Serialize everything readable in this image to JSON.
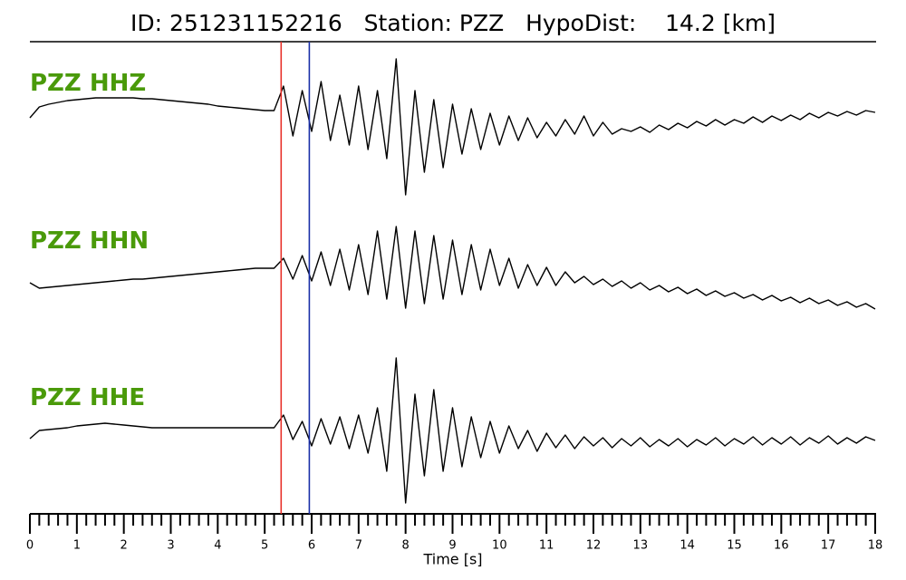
{
  "chart_data": {
    "type": "waveform",
    "title": "ID: 251231152216   Station: PZZ   HypoDist:    14.2 [km]",
    "x_label": "Time [s]",
    "xlim": [
      0,
      18
    ],
    "xticks": [
      0,
      1,
      2,
      3,
      4,
      5,
      6,
      7,
      8,
      9,
      10,
      11,
      12,
      13,
      14,
      15,
      16,
      17,
      18
    ],
    "xticks_minor": [
      0.2,
      0.4,
      0.6,
      0.8,
      1.2,
      1.4,
      1.6,
      1.8,
      2.2,
      2.4,
      2.6,
      2.8,
      3.2,
      3.4,
      3.6,
      3.8,
      4.2,
      4.4,
      4.6,
      4.8,
      5.2,
      5.4,
      5.6,
      5.8,
      6.2,
      6.4,
      6.6,
      6.8,
      7.2,
      7.4,
      7.6,
      7.8,
      8.2,
      8.4,
      8.6,
      8.8,
      9.2,
      9.4,
      9.6,
      9.8,
      10.2,
      10.4,
      10.6,
      10.8,
      11.2,
      11.4,
      11.6,
      11.8,
      12.2,
      12.4,
      12.6,
      12.8,
      13.2,
      13.4,
      13.6,
      13.8,
      14.2,
      14.4,
      14.6,
      14.8,
      15.2,
      15.4,
      15.6,
      15.8,
      16.2,
      16.4,
      16.6,
      16.8,
      17.2,
      17.4,
      17.6,
      17.8
    ],
    "x": [
      0,
      0.2,
      0.4,
      0.6,
      0.8,
      1,
      1.2,
      1.4,
      1.6,
      1.8,
      2,
      2.2,
      2.4,
      2.6,
      2.8,
      3,
      3.2,
      3.4,
      3.6,
      3.8,
      4,
      4.2,
      4.4,
      4.6,
      4.8,
      5,
      5.2,
      5.4,
      5.6,
      5.8,
      6,
      6.2,
      6.4,
      6.6,
      6.8,
      7,
      7.2,
      7.4,
      7.6,
      7.8,
      8,
      8.2,
      8.4,
      8.6,
      8.8,
      9,
      9.2,
      9.4,
      9.6,
      9.8,
      10,
      10.2,
      10.4,
      10.6,
      10.8,
      11,
      11.2,
      11.4,
      11.6,
      11.8,
      12,
      12.2,
      12.4,
      12.6,
      12.8,
      13,
      13.2,
      13.4,
      13.6,
      13.8,
      14,
      14.2,
      14.4,
      14.6,
      14.8,
      15,
      15.2,
      15.4,
      15.6,
      15.8,
      16,
      16.2,
      16.4,
      16.6,
      16.8,
      17,
      17.2,
      17.4,
      17.6,
      17.8,
      18
    ],
    "traces": [
      {
        "name": "PZZ HHZ",
        "color": "#000000",
        "values": [
          10,
          22,
          25,
          27,
          29,
          30,
          31,
          32,
          32,
          32,
          32,
          32,
          31,
          31,
          30,
          29,
          28,
          27,
          26,
          25,
          23,
          22,
          21,
          20,
          19,
          18,
          18,
          45,
          -10,
          40,
          -5,
          50,
          -15,
          35,
          -20,
          45,
          -25,
          40,
          -35,
          75,
          -75,
          40,
          -50,
          30,
          -45,
          25,
          -30,
          20,
          -25,
          15,
          -20,
          12,
          -15,
          10,
          -12,
          5,
          -10,
          8,
          -8,
          12,
          -10,
          5,
          -8,
          -2,
          -5,
          0,
          -6,
          2,
          -3,
          4,
          -1,
          6,
          1,
          8,
          2,
          8,
          4,
          11,
          5,
          12,
          7,
          13,
          8,
          15,
          10,
          16,
          12,
          17,
          13,
          18,
          16
        ]
      },
      {
        "name": "PZZ HHN",
        "color": "#000000",
        "values": [
          -12,
          -18,
          -17,
          -16,
          -15,
          -14,
          -13,
          -12,
          -11,
          -10,
          -9,
          -8,
          -8,
          -7,
          -6,
          -5,
          -4,
          -3,
          -2,
          -1,
          0,
          1,
          2,
          3,
          4,
          4,
          4,
          15,
          -8,
          18,
          -10,
          22,
          -15,
          25,
          -20,
          30,
          -25,
          45,
          -30,
          50,
          -40,
          45,
          -35,
          40,
          -30,
          35,
          -25,
          30,
          -20,
          25,
          -15,
          15,
          -18,
          8,
          -15,
          5,
          -15,
          0,
          -12,
          -5,
          -14,
          -8,
          -16,
          -10,
          -18,
          -12,
          -20,
          -15,
          -22,
          -17,
          -24,
          -19,
          -26,
          -21,
          -27,
          -23,
          -29,
          -25,
          -31,
          -26,
          -32,
          -28,
          -34,
          -29,
          -35,
          -31,
          -37,
          -33,
          -39,
          -35,
          -41
        ]
      },
      {
        "name": "PZZ HHE",
        "color": "#000000",
        "values": [
          -4,
          5,
          6,
          7,
          8,
          10,
          11,
          12,
          13,
          12,
          11,
          10,
          9,
          8,
          8,
          8,
          8,
          8,
          8,
          8,
          8,
          8,
          8,
          8,
          8,
          8,
          8,
          22,
          -5,
          15,
          -12,
          18,
          -10,
          20,
          -15,
          22,
          -20,
          30,
          -40,
          85,
          -75,
          45,
          -45,
          50,
          -40,
          30,
          -35,
          20,
          -25,
          15,
          -20,
          10,
          -15,
          5,
          -18,
          2,
          -14,
          0,
          -15,
          -2,
          -12,
          -3,
          -14,
          -4,
          -12,
          -3,
          -13,
          -5,
          -12,
          -4,
          -13,
          -5,
          -11,
          -3,
          -12,
          -4,
          -10,
          -2,
          -11,
          -3,
          -10,
          -2,
          -11,
          -3,
          -9,
          -1,
          -10,
          -3,
          -9,
          -2,
          -6
        ]
      }
    ],
    "markers": [
      {
        "x": 5.35,
        "color": "#e8312a"
      },
      {
        "x": 5.95,
        "color": "#1a2fa8"
      }
    ]
  }
}
